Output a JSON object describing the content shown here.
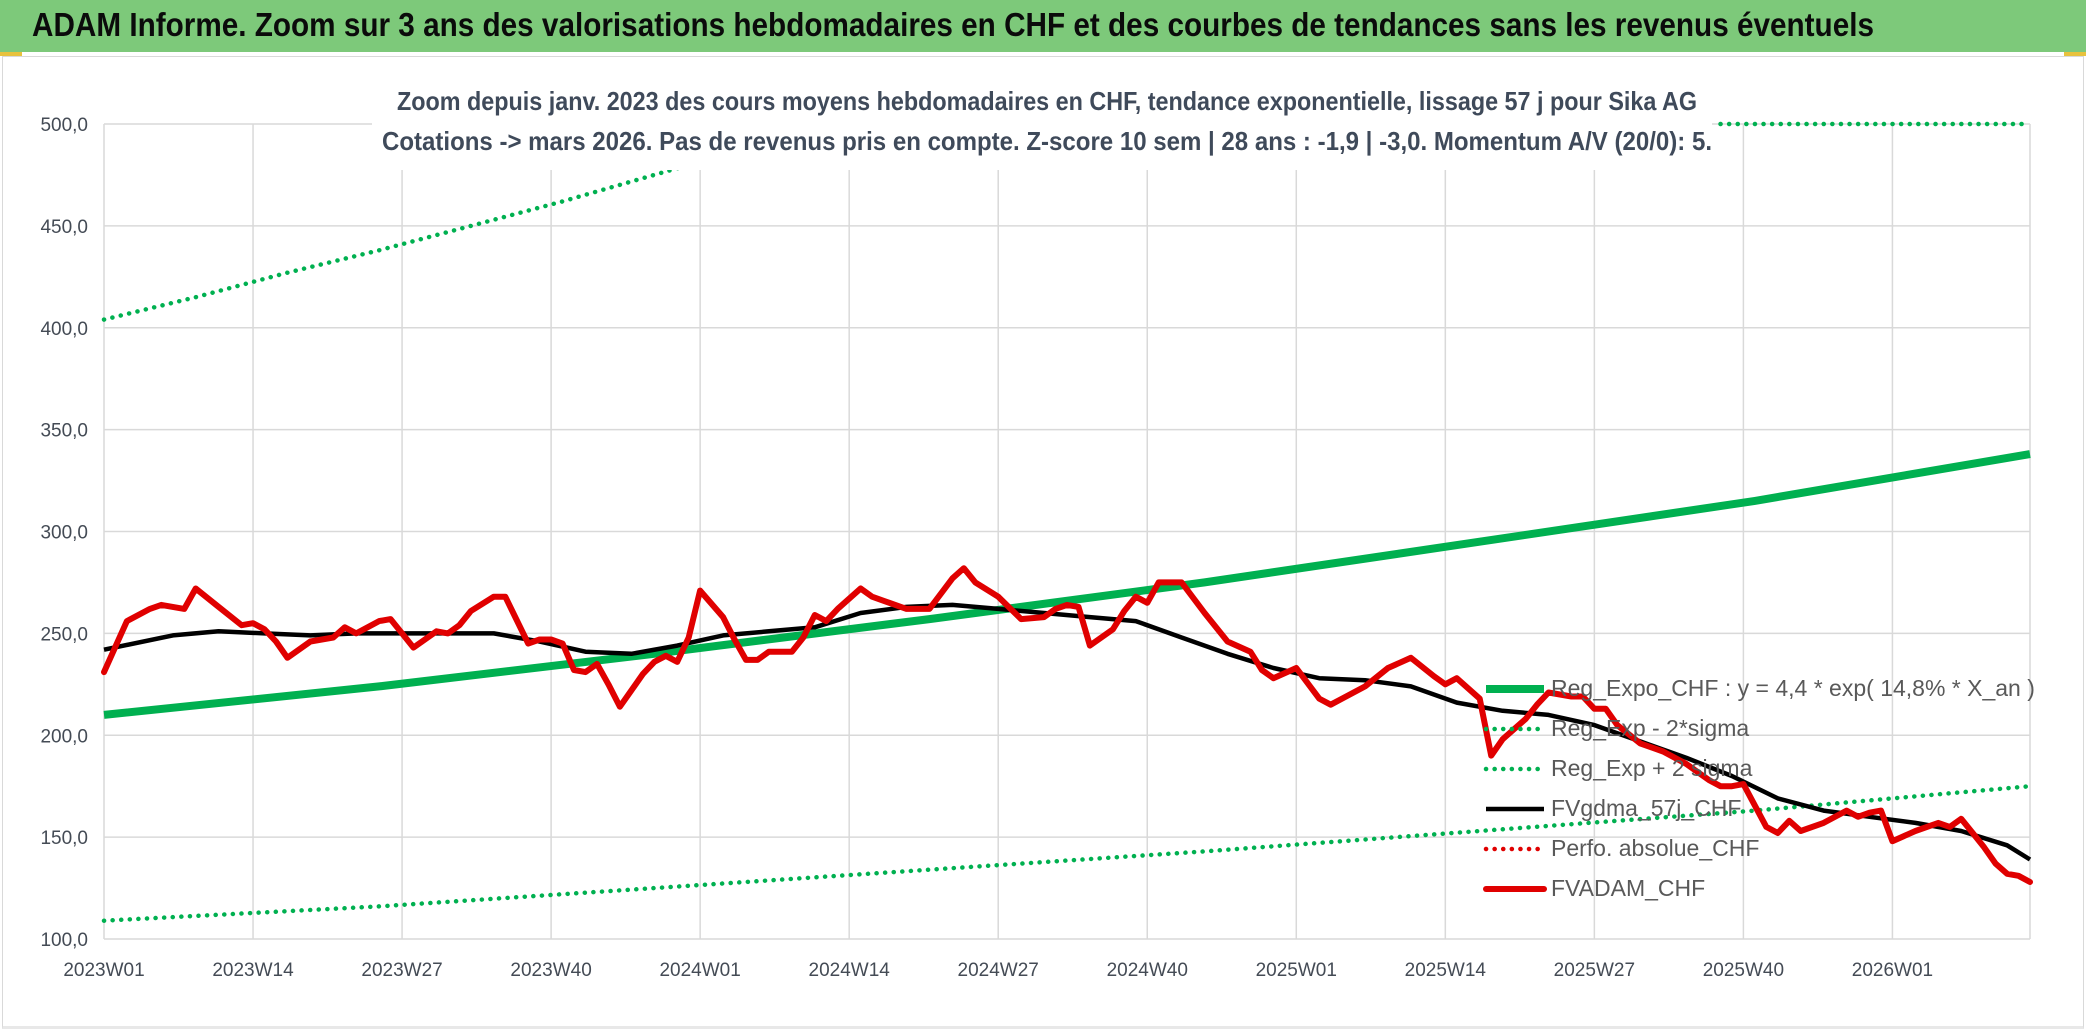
{
  "header": {
    "title": "ADAM Informe. Zoom sur 3 ans des valorisations hebdomadaires en CHF et des courbes de tendances sans les revenus éventuels"
  },
  "chart_data": {
    "type": "line",
    "title": "",
    "subtitle_lines": [
      "Zoom depuis janv. 2023 des cours moyens hebdomadaires en CHF, tendance exponentielle, lissage 57 j pour Sika AG",
      "Cotations -> mars 2026. Pas de revenus pris en compte. Z-score 10 sem | 28 ans : -1,9 | -3,0. Momentum A/V (20/0): 5."
    ],
    "xlabel": "",
    "ylabel": "",
    "ylim": [
      100,
      500
    ],
    "x_range_weeks": [
      0,
      168
    ],
    "yticks": [
      "100,0",
      "150,0",
      "200,0",
      "250,0",
      "300,0",
      "350,0",
      "400,0",
      "450,0",
      "500,0"
    ],
    "xticks": [
      {
        "label": "2023W01",
        "week": 0
      },
      {
        "label": "2023W14",
        "week": 13
      },
      {
        "label": "2023W27",
        "week": 26
      },
      {
        "label": "2023W40",
        "week": 39
      },
      {
        "label": "2024W01",
        "week": 52
      },
      {
        "label": "2024W14",
        "week": 65
      },
      {
        "label": "2024W27",
        "week": 78
      },
      {
        "label": "2024W40",
        "week": 91
      },
      {
        "label": "2025W01",
        "week": 104
      },
      {
        "label": "2025W14",
        "week": 117
      },
      {
        "label": "2025W27",
        "week": 130
      },
      {
        "label": "2025W40",
        "week": 143
      },
      {
        "label": "2026W01",
        "week": 156
      }
    ],
    "grid": true,
    "legend_position": "right",
    "colors": {
      "trend": "#00b050",
      "band": "#00b050",
      "smooth": "#000000",
      "perf": "#e00000",
      "price": "#e00000",
      "grid": "#d9d9d9"
    },
    "series": [
      {
        "name": "Reg_Expo_CHF : y = 4,4 * exp( 14,8% *  X_an )",
        "key": "trend",
        "style": "solid",
        "x": [
          0,
          24,
          48,
          72,
          96,
          120,
          144,
          168
        ],
        "y": [
          210,
          224,
          240,
          257,
          275,
          295,
          315,
          338
        ]
      },
      {
        "name": "Reg_Exp - 2*sigma",
        "key": "band",
        "style": "dotted",
        "x": [
          0,
          24,
          48,
          72,
          96,
          120,
          144,
          168
        ],
        "y": [
          109,
          116,
          125,
          134,
          143,
          153,
          163,
          175
        ]
      },
      {
        "name": "Reg_Exp + 2 sigma",
        "key": "band",
        "style": "dotted",
        "x": [
          0,
          8,
          16,
          24,
          32,
          40,
          48,
          56,
          60
        ],
        "y": [
          404,
          415,
          427,
          438,
          450,
          462,
          475,
          488,
          495
        ],
        "x2": [
          141,
          168
        ],
        "y2": [
          500,
          500
        ]
      },
      {
        "name": "FVgdma_57j_CHF",
        "key": "smooth",
        "style": "solid",
        "x": [
          0,
          6,
          10,
          14,
          18,
          22,
          26,
          30,
          34,
          38,
          42,
          46,
          50,
          54,
          58,
          62,
          66,
          70,
          74,
          78,
          82,
          86,
          90,
          94,
          98,
          102,
          106,
          110,
          114,
          118,
          122,
          126,
          130,
          134,
          138,
          142,
          146,
          150,
          154,
          158,
          162,
          166,
          168
        ],
        "y": [
          242,
          249,
          251,
          250,
          249,
          250,
          250,
          250,
          250,
          246,
          241,
          240,
          244,
          249,
          251,
          253,
          260,
          263,
          264,
          262,
          260,
          258,
          256,
          248,
          240,
          233,
          228,
          227,
          224,
          216,
          212,
          210,
          205,
          197,
          189,
          180,
          169,
          163,
          160,
          157,
          153,
          146,
          139
        ]
      },
      {
        "name": "Perfo. absolue_CHF",
        "key": "perf",
        "style": "dotted",
        "x": [],
        "y": []
      },
      {
        "name": "FVADAM_CHF",
        "key": "price",
        "style": "solid",
        "x": [
          0,
          2,
          4,
          5,
          7,
          8,
          10,
          12,
          13,
          14,
          15,
          16,
          18,
          20,
          21,
          22,
          24,
          25,
          27,
          29,
          30,
          31,
          32,
          34,
          35,
          37,
          38,
          39,
          40,
          41,
          42,
          43,
          44,
          45,
          46,
          47,
          48,
          49,
          50,
          51,
          52,
          54,
          55,
          56,
          57,
          58,
          60,
          61,
          62,
          63,
          64,
          66,
          67,
          68,
          70,
          72,
          74,
          75,
          76,
          78,
          80,
          82,
          83,
          84,
          85,
          86,
          88,
          89,
          90,
          91,
          92,
          94,
          96,
          98,
          100,
          101,
          102,
          104,
          106,
          107,
          108,
          110,
          112,
          114,
          116,
          117,
          118,
          120,
          121,
          122,
          124,
          125,
          126,
          128,
          129,
          130,
          131,
          132,
          134,
          136,
          138,
          139,
          140,
          141,
          142,
          143,
          145,
          146,
          147,
          148,
          150,
          152,
          153,
          154,
          155,
          156,
          158,
          160,
          161,
          162,
          163,
          164,
          165,
          166,
          167,
          168
        ],
        "y": [
          231,
          256,
          262,
          264,
          262,
          272,
          263,
          254,
          255,
          252,
          246,
          238,
          246,
          248,
          253,
          250,
          256,
          257,
          243,
          251,
          250,
          254,
          261,
          268,
          268,
          245,
          247,
          247,
          245,
          232,
          231,
          235,
          225,
          214,
          222,
          230,
          236,
          239,
          236,
          248,
          271,
          258,
          247,
          237,
          237,
          241,
          241,
          248,
          259,
          256,
          262,
          272,
          268,
          266,
          262,
          262,
          277,
          282,
          275,
          268,
          257,
          258,
          262,
          264,
          263,
          244,
          252,
          261,
          268,
          265,
          275,
          275,
          260,
          246,
          241,
          232,
          228,
          233,
          218,
          215,
          218,
          224,
          233,
          238,
          229,
          225,
          228,
          218,
          190,
          198,
          208,
          215,
          221,
          219,
          219,
          213,
          213,
          205,
          196,
          192,
          186,
          182,
          178,
          175,
          175,
          176,
          155,
          152,
          158,
          153,
          157,
          163,
          160,
          162,
          163,
          148,
          153,
          157,
          155,
          159,
          152,
          145,
          137,
          132,
          131,
          128
        ]
      }
    ]
  }
}
